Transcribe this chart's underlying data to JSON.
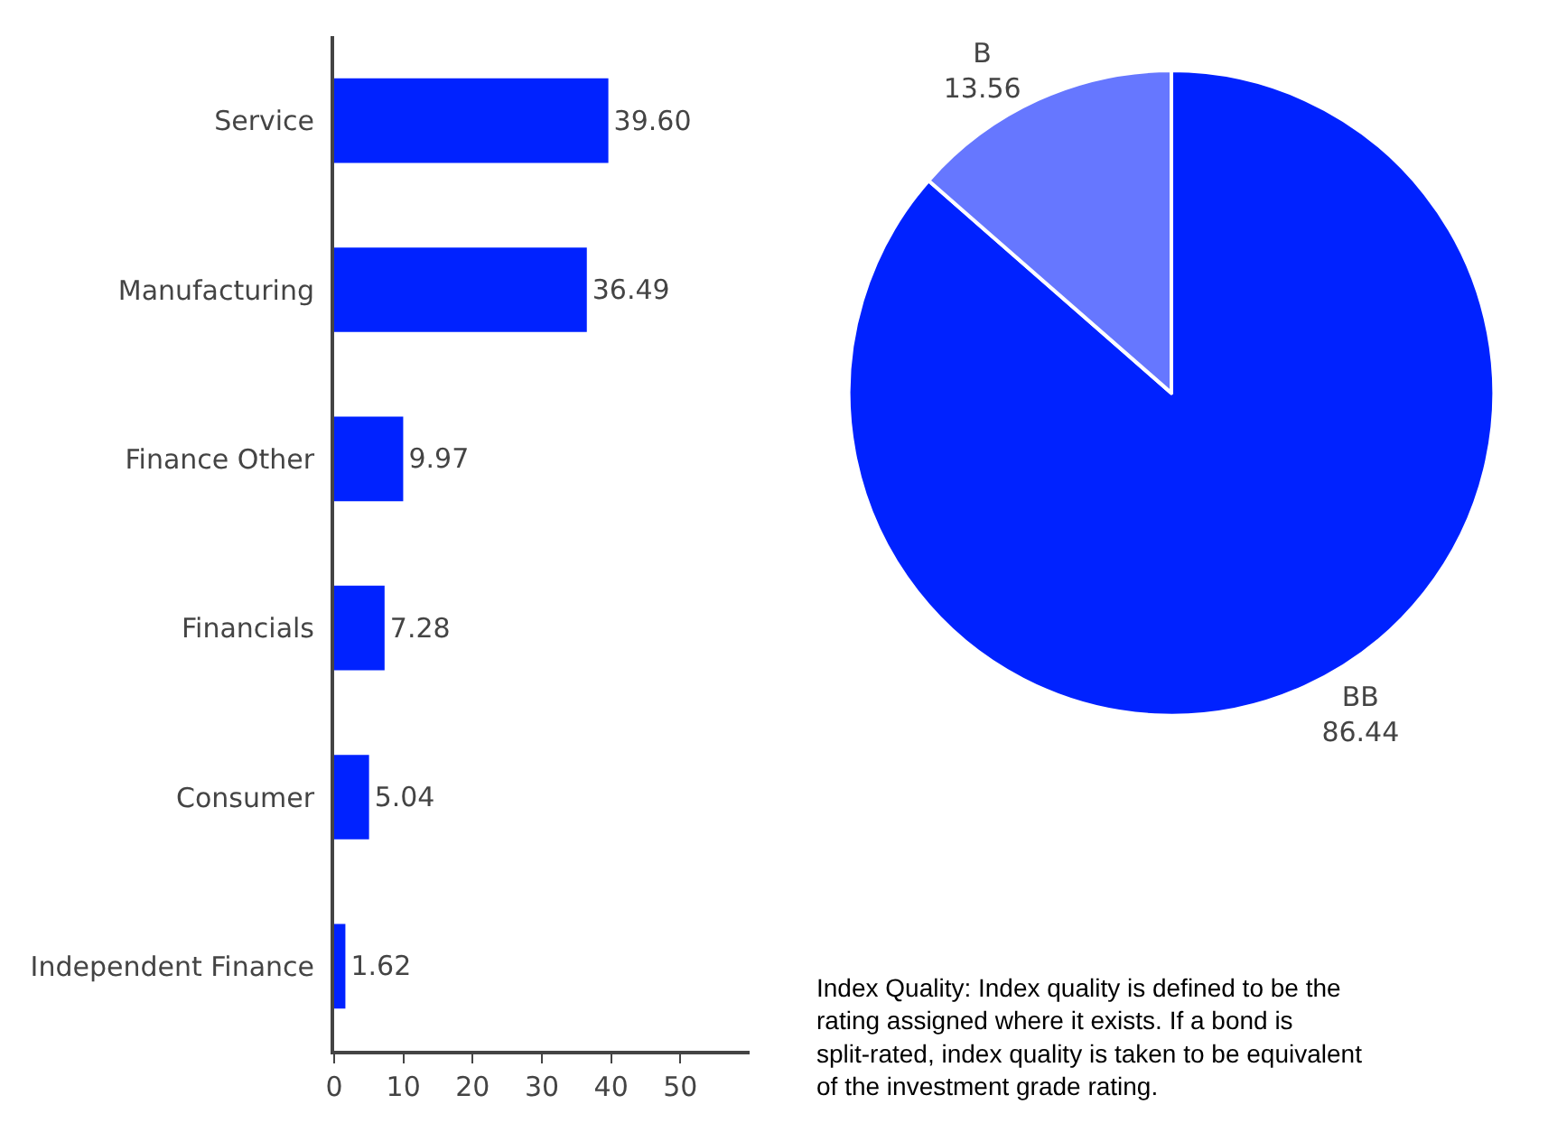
{
  "chart_data": [
    {
      "type": "bar",
      "orientation": "horizontal",
      "categories": [
        "Service",
        "Manufacturing",
        "Finance Other",
        "Financials",
        "Consumer",
        "Independent Finance"
      ],
      "values": [
        39.6,
        36.49,
        9.97,
        7.28,
        5.04,
        1.62
      ],
      "value_labels": [
        "39.60",
        "36.49",
        "9.97",
        "7.28",
        "5.04",
        "1.62"
      ],
      "color": "#0022ff",
      "xlim": [
        0,
        60
      ],
      "xticks": [
        0,
        10,
        20,
        30,
        40,
        50
      ],
      "grid": false,
      "legend": false
    },
    {
      "type": "pie",
      "categories": [
        "BB",
        "B"
      ],
      "values": [
        86.44,
        13.56
      ],
      "value_labels": [
        "86.44",
        "13.56"
      ],
      "colors": [
        "#0022ff",
        "#6677ff"
      ],
      "legend": false,
      "annotations": [
        "Index Quality: Index quality is defined to be the rating assigned where it exists. If a bond is split-rated, index quality is taken to be equivalent of the investment grade rating."
      ]
    }
  ]
}
